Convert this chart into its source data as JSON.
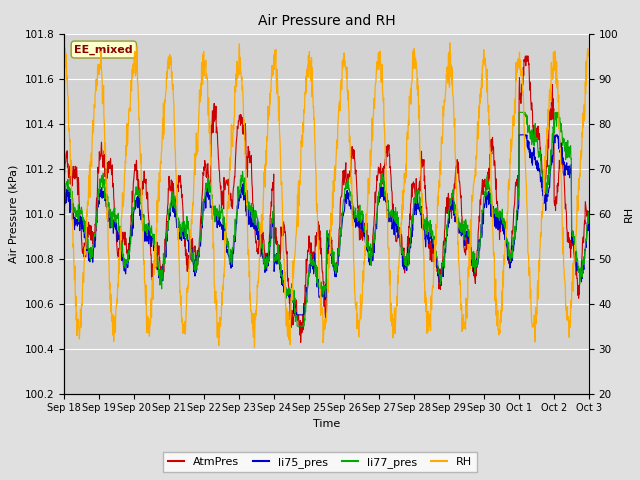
{
  "title": "Air Pressure and RH",
  "xlabel": "Time",
  "ylabel_left": "Air Pressure (kPa)",
  "ylabel_right": "RH",
  "annotation_text": "EE_mixed",
  "ylim_left": [
    100.2,
    101.8
  ],
  "ylim_right": [
    20,
    100
  ],
  "yticks_left": [
    100.2,
    100.4,
    100.6,
    100.8,
    101.0,
    101.2,
    101.4,
    101.6,
    101.8
  ],
  "yticks_right": [
    20,
    30,
    40,
    50,
    60,
    70,
    80,
    90,
    100
  ],
  "bg_color": "#e0e0e0",
  "plot_bg_color": "#d3d3d3",
  "grid_color": "#ffffff",
  "colors": {
    "AtmPres": "#cc0000",
    "li75_pres": "#0000cc",
    "li77_pres": "#00aa00",
    "RH": "#ffaa00"
  },
  "legend_labels": [
    "AtmPres",
    "li75_pres",
    "li77_pres",
    "RH"
  ],
  "x_tick_labels": [
    "Sep 18",
    "Sep 19",
    "Sep 20",
    "Sep 21",
    "Sep 22",
    "Sep 23",
    "Sep 24",
    "Sep 25",
    "Sep 26",
    "Sep 27",
    "Sep 28",
    "Sep 29",
    "Sep 30",
    "Oct 1",
    "Oct 2",
    "Oct 3"
  ],
  "seed": 42
}
